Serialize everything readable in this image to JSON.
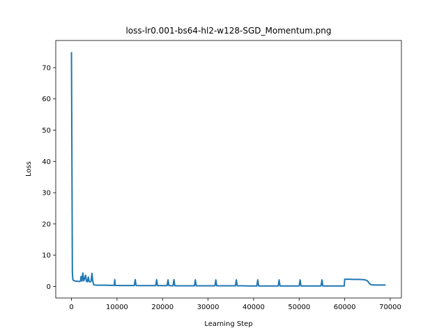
{
  "chart_data": {
    "type": "line",
    "title": "loss-lr0.001-bs64-hl2-w128-SGD_Momentum.png",
    "xlabel": "Learning Step",
    "ylabel": "Loss",
    "xlim": [
      -3450,
      72450
    ],
    "ylim": [
      -3.7,
      78.7
    ],
    "xticks": [
      0,
      10000,
      20000,
      30000,
      40000,
      50000,
      60000,
      70000
    ],
    "yticks": [
      0,
      10,
      20,
      30,
      40,
      50,
      60,
      70
    ],
    "grid": false,
    "legend": "none",
    "series": [
      {
        "color": "#1f77b4",
        "x": [
          0,
          100,
          200,
          300,
          400,
          500,
          700,
          900,
          1200,
          1500,
          1800,
          2000,
          2100,
          2300,
          2500,
          2700,
          2900,
          3100,
          3300,
          3500,
          3700,
          3900,
          4100,
          4300,
          4500,
          4700,
          4900,
          5500,
          6500,
          7500,
          8500,
          9400,
          9500,
          9600,
          10500,
          12000,
          13800,
          14000,
          14200,
          15500,
          17000,
          18500,
          18700,
          18900,
          20000,
          21000,
          21200,
          21400,
          22300,
          22500,
          22700,
          24000,
          25500,
          27000,
          27200,
          27400,
          28500,
          30000,
          31500,
          31700,
          31900,
          33000,
          34500,
          36000,
          36200,
          36400,
          37500,
          39000,
          40700,
          40900,
          41100,
          42500,
          44000,
          45400,
          45600,
          45800,
          47000,
          48500,
          50000,
          50200,
          50400,
          51500,
          53000,
          54800,
          55000,
          55200,
          56500,
          58000,
          59500,
          59900,
          60000,
          61000,
          62000,
          63000,
          64000,
          64500,
          65000,
          65300,
          65600,
          66000,
          66500,
          67000,
          67500,
          68000,
          68500,
          69000
        ],
        "y": [
          75,
          40,
          4.5,
          2.2,
          2.0,
          1.9,
          1.8,
          1.7,
          1.7,
          1.6,
          1.6,
          1.8,
          3.2,
          1.7,
          4.3,
          1.8,
          2.5,
          3.6,
          1.6,
          1.5,
          3.0,
          1.5,
          1.5,
          1.6,
          4.2,
          1.5,
          0.5,
          0.4,
          0.4,
          0.4,
          0.35,
          0.35,
          2.2,
          0.35,
          0.3,
          0.3,
          0.3,
          2.2,
          0.3,
          0.25,
          0.25,
          0.25,
          2.2,
          0.25,
          0.25,
          0.25,
          2.1,
          0.25,
          0.2,
          2.2,
          0.2,
          0.2,
          0.2,
          0.2,
          2.1,
          0.2,
          0.2,
          0.2,
          0.2,
          2.1,
          0.2,
          0.2,
          0.2,
          0.2,
          2.1,
          0.2,
          0.2,
          0.15,
          0.15,
          2.1,
          0.15,
          0.15,
          0.15,
          0.15,
          2.1,
          0.15,
          0.15,
          0.15,
          0.15,
          2.1,
          0.15,
          0.15,
          0.15,
          0.15,
          2.1,
          0.15,
          0.15,
          0.15,
          0.15,
          0.15,
          2.3,
          2.3,
          2.25,
          2.25,
          2.2,
          2.1,
          1.8,
          1.2,
          0.7,
          0.5,
          0.5,
          0.45,
          0.45,
          0.45,
          0.45,
          0.45
        ]
      }
    ]
  }
}
